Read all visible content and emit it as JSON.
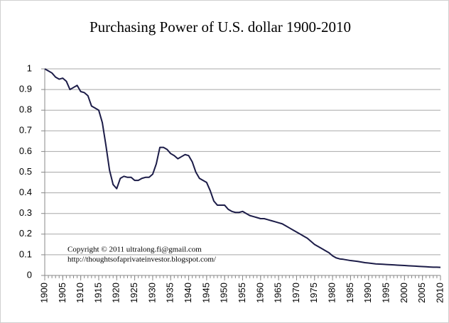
{
  "chart_data": {
    "type": "line",
    "title": "Purchasing Power of U.S. dollar 1900-2010",
    "annotations": [
      "Copyright © 2011 ultralong.fi@gmail.com",
      "http://thoughtsofaprivateinvestor.blogspot.com/"
    ],
    "x": [
      1900,
      1901,
      1902,
      1903,
      1904,
      1905,
      1906,
      1907,
      1908,
      1909,
      1910,
      1911,
      1912,
      1913,
      1914,
      1915,
      1916,
      1917,
      1918,
      1919,
      1920,
      1921,
      1922,
      1923,
      1924,
      1925,
      1926,
      1927,
      1928,
      1929,
      1930,
      1931,
      1932,
      1933,
      1934,
      1935,
      1936,
      1937,
      1938,
      1939,
      1940,
      1941,
      1942,
      1943,
      1944,
      1945,
      1946,
      1947,
      1948,
      1949,
      1950,
      1951,
      1952,
      1953,
      1954,
      1955,
      1956,
      1957,
      1958,
      1959,
      1960,
      1961,
      1962,
      1963,
      1964,
      1965,
      1966,
      1967,
      1968,
      1969,
      1970,
      1971,
      1972,
      1973,
      1974,
      1975,
      1976,
      1977,
      1978,
      1979,
      1980,
      1981,
      1982,
      1983,
      1984,
      1985,
      1986,
      1987,
      1988,
      1989,
      1990,
      1991,
      1992,
      1993,
      1994,
      1995,
      1996,
      1997,
      1998,
      1999,
      2000,
      2001,
      2002,
      2003,
      2004,
      2005,
      2006,
      2007,
      2008,
      2009,
      2010
    ],
    "values": [
      1.0,
      0.99,
      0.98,
      0.96,
      0.95,
      0.955,
      0.94,
      0.9,
      0.91,
      0.92,
      0.89,
      0.885,
      0.87,
      0.82,
      0.81,
      0.8,
      0.74,
      0.63,
      0.51,
      0.44,
      0.42,
      0.47,
      0.48,
      0.475,
      0.475,
      0.46,
      0.46,
      0.47,
      0.475,
      0.475,
      0.49,
      0.54,
      0.62,
      0.62,
      0.61,
      0.59,
      0.58,
      0.565,
      0.575,
      0.585,
      0.58,
      0.55,
      0.5,
      0.47,
      0.46,
      0.45,
      0.41,
      0.36,
      0.34,
      0.34,
      0.34,
      0.32,
      0.31,
      0.305,
      0.305,
      0.31,
      0.3,
      0.29,
      0.285,
      0.28,
      0.275,
      0.275,
      0.27,
      0.265,
      0.26,
      0.255,
      0.25,
      0.24,
      0.23,
      0.22,
      0.21,
      0.2,
      0.19,
      0.18,
      0.165,
      0.15,
      0.14,
      0.13,
      0.12,
      0.11,
      0.095,
      0.085,
      0.08,
      0.078,
      0.075,
      0.072,
      0.07,
      0.068,
      0.065,
      0.062,
      0.06,
      0.058,
      0.056,
      0.055,
      0.054,
      0.053,
      0.052,
      0.051,
      0.05,
      0.049,
      0.048,
      0.047,
      0.046,
      0.045,
      0.044,
      0.043,
      0.042,
      0.041,
      0.04,
      0.04,
      0.039
    ],
    "color": "#1c1c48",
    "xlim": [
      1900,
      2010
    ],
    "xticks": [
      1900,
      1905,
      1910,
      1915,
      1920,
      1925,
      1930,
      1935,
      1940,
      1945,
      1950,
      1955,
      1960,
      1965,
      1970,
      1975,
      1980,
      1985,
      1990,
      1995,
      2000,
      2005,
      2010
    ],
    "ylim": [
      0,
      1
    ],
    "yticks": [
      0,
      0.1,
      0.2,
      0.3,
      0.4,
      0.5,
      0.6,
      0.7,
      0.8,
      0.9,
      1
    ],
    "grid": true
  }
}
